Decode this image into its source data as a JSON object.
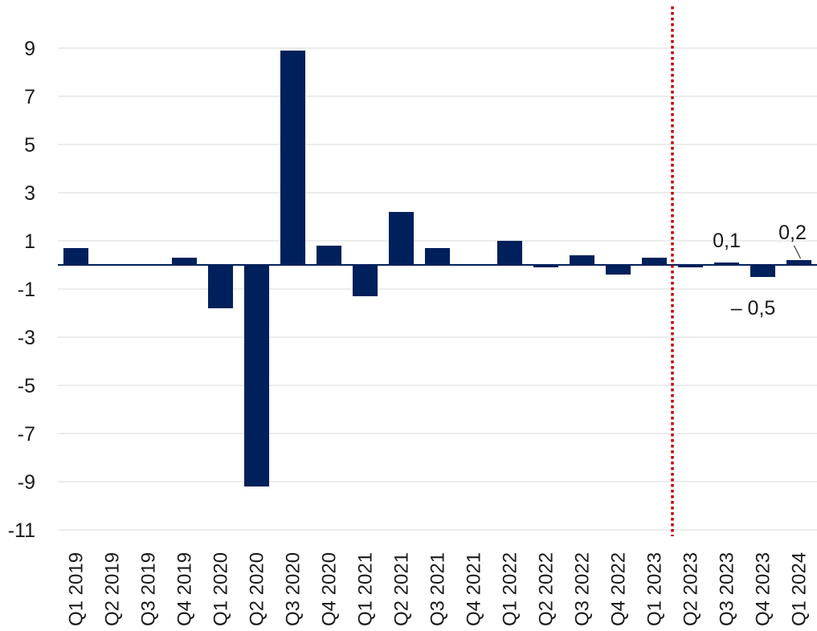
{
  "chart_data": {
    "type": "bar",
    "title": "",
    "xlabel": "",
    "ylabel": "",
    "categories": [
      "Q1 2019",
      "Q2 2019",
      "Q3 2019",
      "Q4 2019",
      "Q1 2020",
      "Q2 2020",
      "Q3 2020",
      "Q4 2020",
      "Q1 2021",
      "Q2 2021",
      "Q3 2021",
      "Q4 2021",
      "Q1 2022",
      "Q2 2022",
      "Q3 2022",
      "Q4 2022",
      "Q1 2023",
      "Q2 2023",
      "Q3 2023",
      "Q4 2023",
      "Q1 2024"
    ],
    "values": [
      0.7,
      0.0,
      0.0,
      0.3,
      -1.8,
      -9.2,
      8.9,
      0.8,
      -1.3,
      2.2,
      0.7,
      0.0,
      1.0,
      -0.1,
      0.4,
      -0.4,
      0.3,
      -0.1,
      0.1,
      -0.5,
      0.2
    ],
    "ylim": [
      -11,
      10
    ],
    "yticks": [
      "9",
      "7",
      "5",
      "3",
      "1",
      "-1",
      "-3",
      "-5",
      "-7",
      "-9",
      "-11"
    ],
    "grid": true,
    "bar_color": "#00205b",
    "forecast_divider": {
      "after_category": "Q1 2023",
      "color": "#c00000",
      "style": "dotted"
    },
    "data_labels": [
      {
        "category": "Q3 2023",
        "text": "0,1"
      },
      {
        "category": "Q4 2023",
        "text": "– 0,5"
      },
      {
        "category": "Q1 2024",
        "text": "0,2"
      }
    ]
  }
}
